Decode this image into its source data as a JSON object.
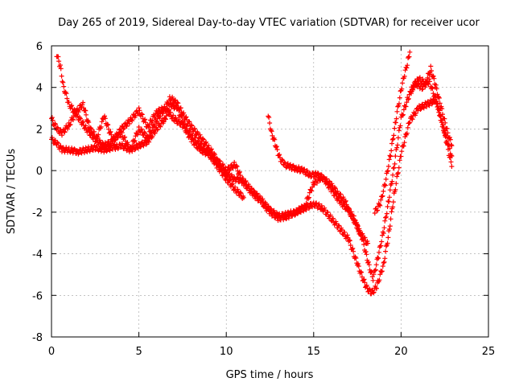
{
  "chart_data": {
    "type": "scatter",
    "title": "Day 265 of 2019, Sidereal Day-to-day VTEC variation (SDTVAR) for receiver ucor",
    "xlabel": "GPS time / hours",
    "ylabel": "SDTVAR / TECUs",
    "xlim": [
      0,
      25
    ],
    "ylim": [
      -8,
      6
    ],
    "xticks": [
      0,
      5,
      10,
      15,
      20,
      25
    ],
    "yticks": [
      -8,
      -6,
      -4,
      -2,
      0,
      2,
      4,
      6
    ],
    "xtick_labels": [
      "0",
      "5",
      "10",
      "15",
      "20",
      "25"
    ],
    "ytick_labels": [
      "-8",
      "-6",
      "-4",
      "-2",
      "0",
      "2",
      "4",
      "6"
    ],
    "grid": true,
    "marker": "+",
    "series": [
      {
        "name": "track-a",
        "color": "#ff0000",
        "x": [
          0.0,
          0.3,
          0.6,
          1.0,
          1.5,
          2.0,
          2.5,
          3.0,
          3.5,
          4.0,
          4.5,
          5.0,
          5.5,
          6.0,
          6.5,
          6.8,
          7.2,
          7.6,
          8.0,
          8.5,
          9.0,
          9.5,
          10.0,
          10.5,
          11.0,
          11.5,
          12.0,
          12.5,
          13.0,
          13.5,
          14.0,
          14.5,
          15.0,
          15.5,
          16.0,
          16.5,
          17.0,
          17.5,
          18.0,
          18.3,
          18.6,
          19.0,
          19.3,
          19.6,
          20.0,
          20.5,
          21.0,
          21.5,
          22.0,
          22.5,
          22.9
        ],
        "y": [
          1.5,
          1.3,
          1.0,
          1.0,
          0.9,
          1.0,
          1.1,
          1.0,
          1.1,
          1.2,
          1.0,
          1.2,
          1.4,
          2.0,
          2.5,
          3.2,
          3.0,
          2.2,
          1.7,
          1.2,
          0.8,
          0.4,
          -0.2,
          -0.4,
          -0.5,
          -1.0,
          -1.4,
          -1.9,
          -2.2,
          -2.1,
          -2.0,
          -1.8,
          -1.6,
          -1.8,
          -2.3,
          -2.8,
          -3.3,
          -4.5,
          -5.6,
          -5.9,
          -5.6,
          -4.5,
          -3.0,
          -1.2,
          0.8,
          2.4,
          3.0,
          3.2,
          3.4,
          1.8,
          0.2
        ]
      },
      {
        "name": "track-b",
        "color": "#ff0000",
        "x": [
          0.0,
          0.3,
          0.6,
          1.0,
          1.4,
          1.8,
          2.2,
          2.6,
          3.0,
          3.5,
          4.0,
          4.5,
          5.0,
          5.5,
          6.0,
          6.5,
          6.8,
          7.2,
          7.6,
          8.0,
          8.5,
          9.0,
          9.5,
          10.0,
          10.5,
          11.0,
          11.5,
          12.0,
          12.5,
          13.0,
          13.5,
          14.0,
          14.5,
          15.0,
          15.5,
          16.0,
          16.5,
          17.0,
          17.5,
          17.8,
          18.1,
          18.4,
          18.7,
          19.0,
          19.3,
          19.6,
          20.0,
          20.4,
          20.8,
          21.2,
          21.6,
          22.0,
          22.4,
          22.9
        ],
        "y": [
          2.5,
          2.0,
          1.8,
          2.2,
          2.8,
          3.2,
          2.0,
          1.6,
          2.6,
          1.5,
          1.8,
          1.0,
          2.0,
          1.6,
          2.4,
          3.0,
          3.5,
          3.2,
          2.6,
          2.1,
          1.6,
          1.1,
          0.5,
          0.0,
          0.3,
          -0.6,
          -1.1,
          -1.5,
          -2.0,
          -2.3,
          -2.2,
          -2.0,
          -1.7,
          -0.6,
          -0.3,
          -0.9,
          -1.5,
          -1.9,
          -2.7,
          -3.3,
          -4.4,
          -5.2,
          -4.1,
          -2.9,
          -1.4,
          0.2,
          2.5,
          3.5,
          4.2,
          4.0,
          4.3,
          3.4,
          2.1,
          0.7
        ]
      },
      {
        "name": "track-c",
        "color": "#ff0000",
        "x": [
          0.3,
          0.5,
          0.7,
          1.0,
          1.5,
          2.0,
          2.5,
          3.0,
          3.5,
          4.0,
          4.5,
          5.0,
          5.5,
          6.0,
          6.5,
          7.0,
          7.5,
          8.0,
          8.5,
          9.0,
          9.5,
          10.0,
          10.5,
          11.0
        ],
        "y": [
          5.6,
          5.0,
          4.0,
          3.2,
          2.6,
          2.0,
          1.5,
          1.2,
          1.4,
          2.0,
          2.4,
          2.9,
          2.1,
          2.8,
          3.0,
          2.5,
          2.2,
          1.5,
          1.0,
          0.8,
          0.2,
          -0.4,
          -0.9,
          -1.3
        ]
      },
      {
        "name": "track-d",
        "color": "#ff0000",
        "x": [
          12.4,
          12.6,
          12.8,
          13.0,
          13.3,
          13.6,
          14.0,
          14.4,
          14.8,
          15.2,
          15.6,
          16.0,
          16.4,
          16.8,
          17.0,
          17.3,
          17.6,
          17.9,
          18.1
        ],
        "y": [
          2.6,
          1.8,
          1.3,
          0.7,
          0.3,
          0.2,
          0.1,
          0.0,
          -0.2,
          -0.2,
          -0.4,
          -0.7,
          -1.1,
          -1.5,
          -1.9,
          -2.3,
          -2.9,
          -3.3,
          -3.5
        ]
      },
      {
        "name": "track-e",
        "color": "#ff0000",
        "x": [
          18.5,
          18.8,
          19.1,
          19.4,
          19.7,
          20.0,
          20.2,
          20.4,
          20.5
        ],
        "y": [
          -2.0,
          -1.6,
          -0.6,
          0.8,
          2.4,
          3.9,
          4.6,
          5.3,
          5.7
        ]
      },
      {
        "name": "track-f",
        "color": "#ff0000",
        "x": [
          20.6,
          21.0,
          21.4,
          21.7,
          22.0,
          22.3,
          22.6,
          22.9
        ],
        "y": [
          3.9,
          4.4,
          4.2,
          4.9,
          4.0,
          3.0,
          2.0,
          1.2
        ]
      }
    ]
  }
}
